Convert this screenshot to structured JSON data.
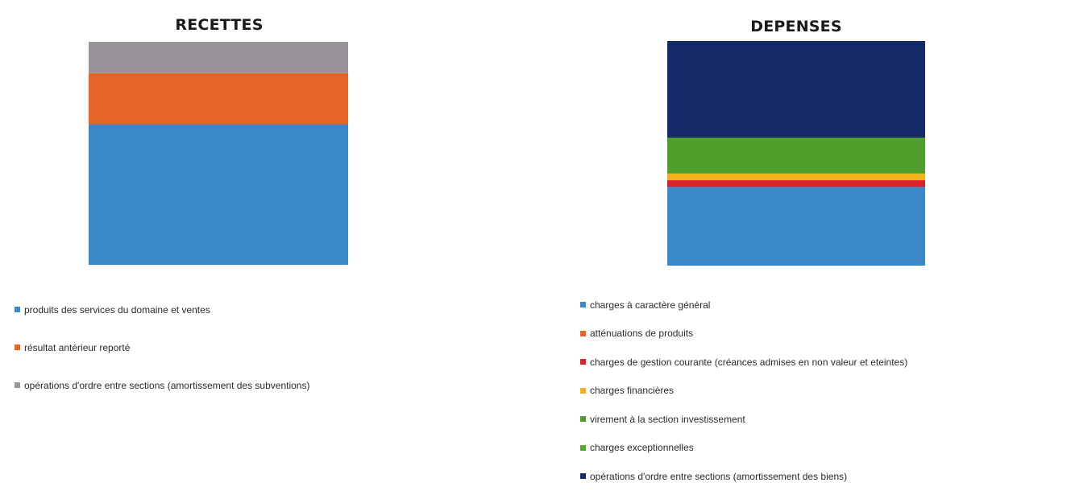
{
  "chart_data": [
    {
      "type": "bar",
      "stacked": true,
      "title": "RECETTES",
      "categories": [
        ""
      ],
      "xlabel": "",
      "ylabel": "",
      "ylim": [
        0,
        100
      ],
      "grid": false,
      "legend_position": "bottom",
      "series": [
        {
          "name": "produits des services du domaine et ventes",
          "values": [
            63
          ],
          "color": "#3a87c9"
        },
        {
          "name": "résultat antérieur reporté",
          "values": [
            23
          ],
          "color": "#e8652a"
        },
        {
          "name": "opérations d'ordre entre sections (amortissement des subventions)",
          "values": [
            14
          ],
          "color": "#999499"
        }
      ]
    },
    {
      "type": "bar",
      "stacked": true,
      "title": "DEPENSES",
      "categories": [
        ""
      ],
      "xlabel": "",
      "ylabel": "",
      "ylim": [
        0,
        100
      ],
      "grid": false,
      "legend_position": "bottom",
      "series": [
        {
          "name": "charges à caractère général",
          "values": [
            35
          ],
          "color": "#3a87c9"
        },
        {
          "name": "atténuations de produits",
          "values": [
            0
          ],
          "color": "#e8652a"
        },
        {
          "name": "charges de gestion courante (créances admises en non valeur et eteintes)",
          "values": [
            3
          ],
          "color": "#d9222a"
        },
        {
          "name": "charges financières",
          "values": [
            3
          ],
          "color": "#f2b31a"
        },
        {
          "name": "virement à la section investissement",
          "values": [
            16
          ],
          "color": "#4f9e2c"
        },
        {
          "name": "charges exceptionnelles",
          "values": [
            0
          ],
          "color": "#5aa836"
        },
        {
          "name": "opérations d'ordre entre sections (amortissement des biens)",
          "values": [
            43
          ],
          "color": "#14286a"
        }
      ]
    }
  ]
}
